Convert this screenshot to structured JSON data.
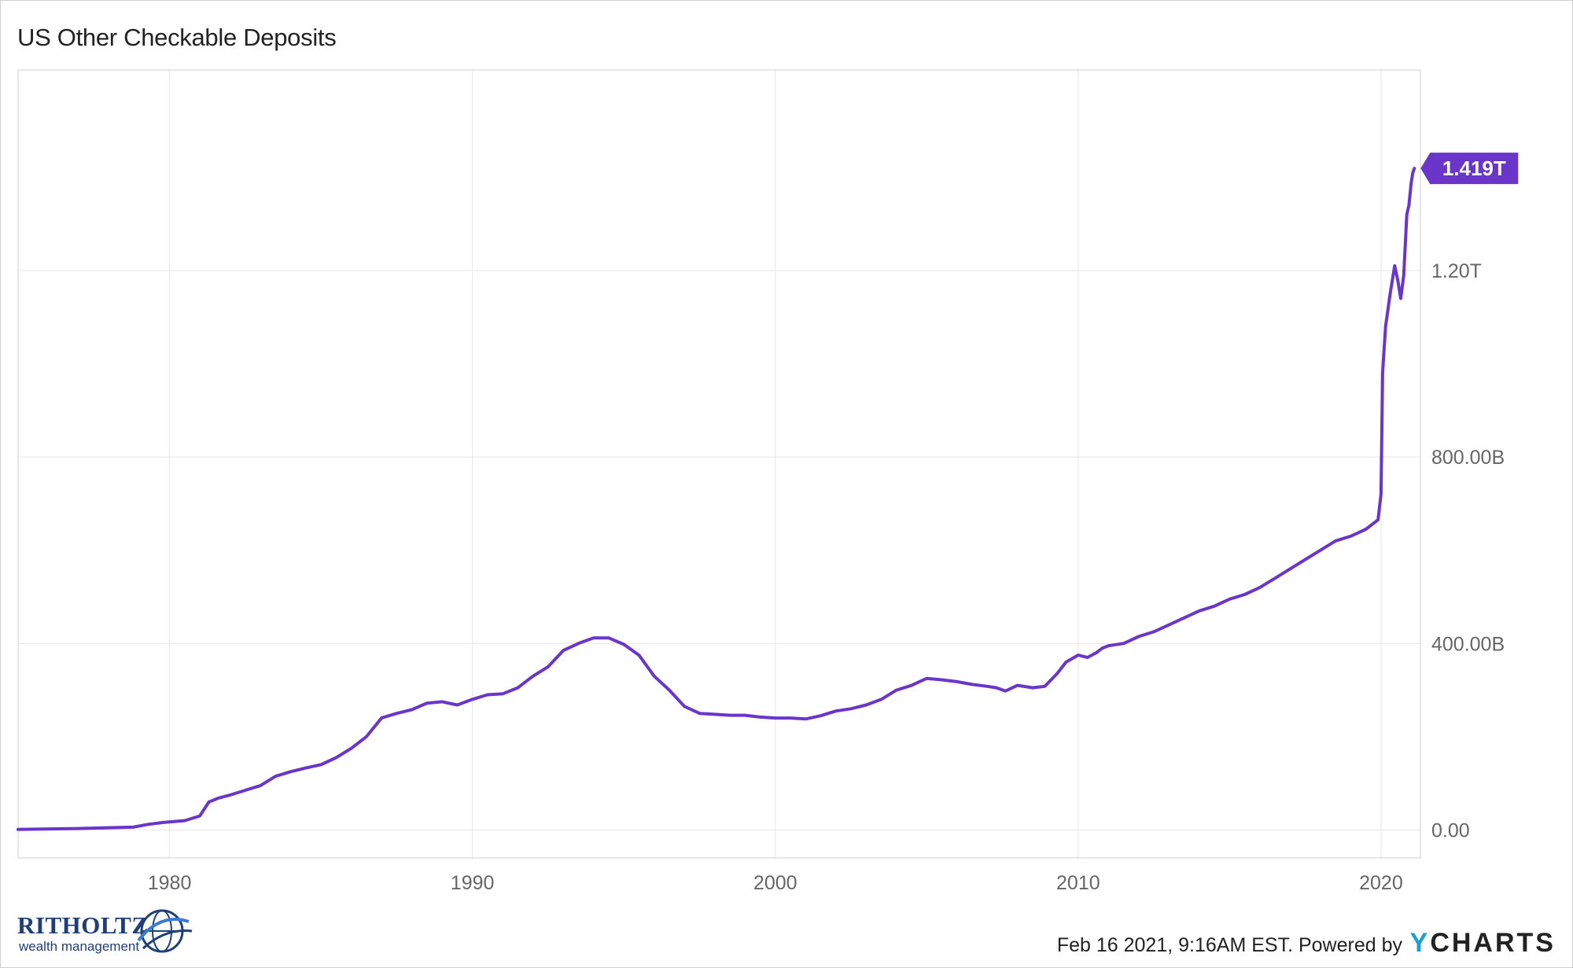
{
  "title": "US Other Checkable Deposits",
  "footer": {
    "timestamp": "Feb 16 2021, 9:16AM EST. Powered by",
    "brand_y": "Y",
    "brand_rest": "CHARTS"
  },
  "logo": {
    "name": "RITHOLTZ",
    "tagline": "wealth management"
  },
  "colors": {
    "line": "#6a35c9",
    "grid": "#e6e6e6",
    "axis_text": "#666666",
    "badge": "#6a35c9"
  },
  "chart_data": {
    "type": "line",
    "title": "US Other Checkable Deposits",
    "xlabel": "",
    "ylabel": "",
    "xlim": [
      1975.0,
      2021.3
    ],
    "ylim": [
      -60,
      1630
    ],
    "grid": true,
    "legend": "none",
    "x_ticks": [
      {
        "value": 1980,
        "label": "1980"
      },
      {
        "value": 1990,
        "label": "1990"
      },
      {
        "value": 2000,
        "label": "2000"
      },
      {
        "value": 2010,
        "label": "2010"
      },
      {
        "value": 2020,
        "label": "2020"
      }
    ],
    "y_ticks": [
      {
        "value": 0,
        "label": "0.00"
      },
      {
        "value": 400,
        "label": "400.00B"
      },
      {
        "value": 800,
        "label": "800.00B"
      },
      {
        "value": 1200,
        "label": "1.20T"
      }
    ],
    "last_value_label": "1.419T",
    "series": [
      {
        "unit": "USD billions",
        "x": [
          1975.0,
          1977.0,
          1978.8,
          1979.3,
          1979.8,
          1980.5,
          1981.0,
          1981.1,
          1981.3,
          1981.6,
          1982.0,
          1982.5,
          1983.0,
          1983.5,
          1984.0,
          1984.5,
          1985.0,
          1985.5,
          1986.0,
          1986.5,
          1987.0,
          1987.5,
          1988.0,
          1988.5,
          1989.0,
          1989.5,
          1990.0,
          1990.5,
          1991.0,
          1991.5,
          1992.0,
          1992.5,
          1993.0,
          1993.5,
          1994.0,
          1994.5,
          1995.0,
          1995.5,
          1996.0,
          1996.5,
          1997.0,
          1997.5,
          1998.0,
          1998.5,
          1999.0,
          1999.5,
          2000.0,
          2000.5,
          2001.0,
          2001.5,
          2002.0,
          2002.5,
          2003.0,
          2003.5,
          2004.0,
          2004.5,
          2005.0,
          2005.5,
          2006.0,
          2006.5,
          2007.0,
          2007.3,
          2007.6,
          2008.0,
          2008.5,
          2008.9,
          2009.3,
          2009.6,
          2010.0,
          2010.3,
          2010.6,
          2010.8,
          2011.0,
          2011.5,
          2012.0,
          2012.5,
          2013.0,
          2013.5,
          2014.0,
          2014.5,
          2015.0,
          2015.5,
          2016.0,
          2016.5,
          2017.0,
          2017.5,
          2018.0,
          2018.5,
          2019.0,
          2019.5,
          2019.9,
          2020.0,
          2020.05,
          2020.15,
          2020.3,
          2020.45,
          2020.55,
          2020.65,
          2020.75,
          2020.85,
          2020.92,
          2021.0,
          2021.05,
          2021.1
        ],
        "y": [
          1,
          3,
          6,
          12,
          16,
          20,
          30,
          40,
          60,
          68,
          75,
          85,
          95,
          115,
          125,
          133,
          140,
          155,
          175,
          200,
          240,
          250,
          258,
          272,
          275,
          268,
          280,
          290,
          292,
          305,
          330,
          350,
          385,
          400,
          412,
          412,
          398,
          375,
          330,
          300,
          265,
          250,
          248,
          246,
          246,
          242,
          240,
          240,
          238,
          245,
          255,
          260,
          268,
          280,
          300,
          310,
          325,
          322,
          318,
          312,
          308,
          305,
          298,
          310,
          305,
          308,
          335,
          360,
          375,
          370,
          380,
          390,
          395,
          400,
          415,
          425,
          440,
          455,
          470,
          480,
          495,
          505,
          520,
          540,
          560,
          580,
          600,
          620,
          630,
          645,
          665,
          720,
          980,
          1080,
          1150,
          1210,
          1180,
          1140,
          1190,
          1320,
          1340,
          1390,
          1410,
          1419
        ]
      }
    ]
  }
}
